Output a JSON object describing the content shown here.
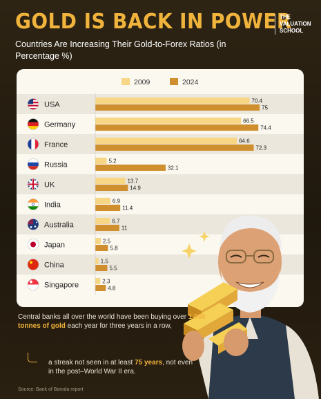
{
  "header": {
    "title": "GOLD IS BACK IN POWER",
    "brand_line1": "THE",
    "brand_line2": "VALUATION",
    "brand_line3": "SCHOOL",
    "subtitle": "Countries Are Increasing Their Gold-to-Forex Ratios (in Percentage %)"
  },
  "chart_data": {
    "type": "bar",
    "orientation": "horizontal",
    "title": "",
    "xlabel": "",
    "ylabel": "",
    "xlim": [
      0,
      80
    ],
    "grid": false,
    "legend_position": "top",
    "categories": [
      "USA",
      "Germany",
      "France",
      "Russia",
      "UK",
      "India",
      "Australia",
      "Japan",
      "China",
      "Singapore"
    ],
    "series": [
      {
        "name": "2009",
        "color": "#f7d786",
        "values": [
          70.4,
          66.5,
          64.6,
          5.2,
          13.7,
          6.9,
          6.7,
          2.5,
          1.5,
          2.3
        ]
      },
      {
        "name": "2024",
        "color": "#cf8f2e",
        "values": [
          75,
          74.4,
          72.3,
          32.1,
          14.9,
          11.4,
          11,
          5.8,
          5.5,
          4.8
        ]
      }
    ],
    "value_labels": [
      [
        "70.4",
        "75"
      ],
      [
        "66.5",
        "74.4"
      ],
      [
        "64.6",
        "72.3"
      ],
      [
        "5.2",
        "32.1"
      ],
      [
        "13.7",
        "14.9"
      ],
      [
        "6.9",
        "11.4"
      ],
      [
        "6.7",
        "11"
      ],
      [
        "2.5",
        "5.8"
      ],
      [
        "1.5",
        "5.5"
      ],
      [
        "2.3",
        "4.8"
      ]
    ],
    "flag_icons": [
      "us-flag-icon",
      "germany-flag-icon",
      "france-flag-icon",
      "russia-flag-icon",
      "uk-flag-icon",
      "india-flag-icon",
      "australia-flag-icon",
      "japan-flag-icon",
      "china-flag-icon",
      "singapore-flag-icon"
    ]
  },
  "info": {
    "part1": "Central banks all over the world have been buying over ",
    "highlight1": "1,000 tonnes of gold",
    "part2": " each year for three years in a row,",
    "part3": "a streak not seen in at least ",
    "highlight2": "75 years",
    "part4": ", not even in the post–World War II era."
  },
  "source": "Source: Bank of Baroda report"
}
